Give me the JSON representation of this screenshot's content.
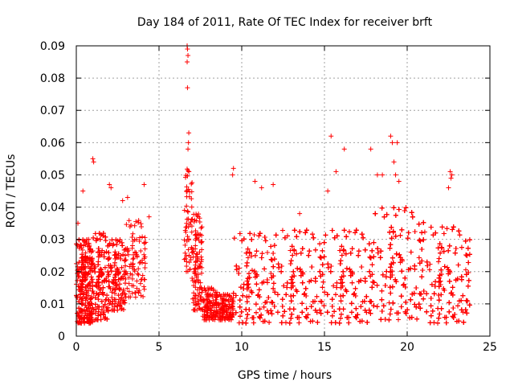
{
  "chart_data": {
    "type": "scatter",
    "title": "Day 184 of 2011, Rate Of TEC Index for receiver brft",
    "xlabel": "GPS time / hours",
    "ylabel": "ROTI / TECUs",
    "xlim": [
      0,
      25
    ],
    "ylim": [
      0,
      0.09
    ],
    "xticks": [
      0,
      5,
      10,
      15,
      20,
      25
    ],
    "xtick_labels": [
      "0",
      "5",
      "10",
      "15",
      "20",
      "25"
    ],
    "yticks": [
      0,
      0.01,
      0.02,
      0.03,
      0.04,
      0.05,
      0.06,
      0.07,
      0.08,
      0.09
    ],
    "ytick_labels": [
      "0",
      "0.01",
      "0.02",
      "0.03",
      "0.04",
      "0.05",
      "0.06",
      "0.07",
      "0.08",
      "0.09"
    ],
    "grid": true,
    "marker": "+",
    "color": "#ff0000",
    "series": [
      {
        "name": "ROTI",
        "density_profile": [
          {
            "x": [
              0.0,
              1.0
            ],
            "y_min": 0.004,
            "y_max": 0.03,
            "n": 420
          },
          {
            "x": [
              1.0,
              2.0
            ],
            "y_min": 0.005,
            "y_max": 0.032,
            "n": 380
          },
          {
            "x": [
              2.0,
              3.0
            ],
            "y_min": 0.008,
            "y_max": 0.03,
            "n": 260
          },
          {
            "x": [
              3.0,
              4.2
            ],
            "y_min": 0.012,
            "y_max": 0.036,
            "n": 90
          },
          {
            "x": [
              6.5,
              7.0
            ],
            "y_min": 0.02,
            "y_max": 0.052,
            "n": 60
          },
          {
            "x": [
              7.0,
              7.6
            ],
            "y_min": 0.008,
            "y_max": 0.038,
            "n": 110
          },
          {
            "x": [
              7.6,
              8.5
            ],
            "y_min": 0.005,
            "y_max": 0.015,
            "n": 120
          },
          {
            "x": [
              8.5,
              9.5
            ],
            "y_min": 0.005,
            "y_max": 0.013,
            "n": 140
          },
          {
            "x": [
              9.5,
              12.0
            ],
            "y_min": 0.004,
            "y_max": 0.032,
            "n": 420
          },
          {
            "x": [
              12.0,
              15.0
            ],
            "y_min": 0.004,
            "y_max": 0.033,
            "n": 500
          },
          {
            "x": [
              15.0,
              18.0
            ],
            "y_min": 0.004,
            "y_max": 0.033,
            "n": 560
          },
          {
            "x": [
              18.0,
              21.0
            ],
            "y_min": 0.005,
            "y_max": 0.04,
            "n": 640
          },
          {
            "x": [
              21.0,
              23.8
            ],
            "y_min": 0.004,
            "y_max": 0.034,
            "n": 560
          }
        ],
        "notable_points": [
          {
            "x": 0.1,
            "y": 0.035
          },
          {
            "x": 0.4,
            "y": 0.045
          },
          {
            "x": 1.0,
            "y": 0.055
          },
          {
            "x": 1.05,
            "y": 0.054
          },
          {
            "x": 2.0,
            "y": 0.047
          },
          {
            "x": 2.1,
            "y": 0.046
          },
          {
            "x": 2.8,
            "y": 0.042
          },
          {
            "x": 3.1,
            "y": 0.043
          },
          {
            "x": 4.1,
            "y": 0.047
          },
          {
            "x": 4.4,
            "y": 0.037
          },
          {
            "x": 6.7,
            "y": 0.09
          },
          {
            "x": 6.72,
            "y": 0.089
          },
          {
            "x": 6.75,
            "y": 0.087
          },
          {
            "x": 6.7,
            "y": 0.085
          },
          {
            "x": 6.72,
            "y": 0.077
          },
          {
            "x": 6.8,
            "y": 0.063
          },
          {
            "x": 6.78,
            "y": 0.06
          },
          {
            "x": 6.75,
            "y": 0.058
          },
          {
            "x": 9.5,
            "y": 0.052
          },
          {
            "x": 9.45,
            "y": 0.05
          },
          {
            "x": 10.8,
            "y": 0.048
          },
          {
            "x": 11.2,
            "y": 0.046
          },
          {
            "x": 11.9,
            "y": 0.047
          },
          {
            "x": 13.5,
            "y": 0.038
          },
          {
            "x": 15.2,
            "y": 0.045
          },
          {
            "x": 15.4,
            "y": 0.062
          },
          {
            "x": 15.7,
            "y": 0.051
          },
          {
            "x": 16.2,
            "y": 0.058
          },
          {
            "x": 17.8,
            "y": 0.058
          },
          {
            "x": 18.2,
            "y": 0.05
          },
          {
            "x": 18.5,
            "y": 0.05
          },
          {
            "x": 19.0,
            "y": 0.062
          },
          {
            "x": 19.1,
            "y": 0.06
          },
          {
            "x": 19.2,
            "y": 0.054
          },
          {
            "x": 19.4,
            "y": 0.06
          },
          {
            "x": 19.3,
            "y": 0.05
          },
          {
            "x": 19.5,
            "y": 0.048
          },
          {
            "x": 22.6,
            "y": 0.051
          },
          {
            "x": 22.7,
            "y": 0.05
          },
          {
            "x": 22.65,
            "y": 0.049
          },
          {
            "x": 22.5,
            "y": 0.046
          }
        ]
      }
    ]
  }
}
